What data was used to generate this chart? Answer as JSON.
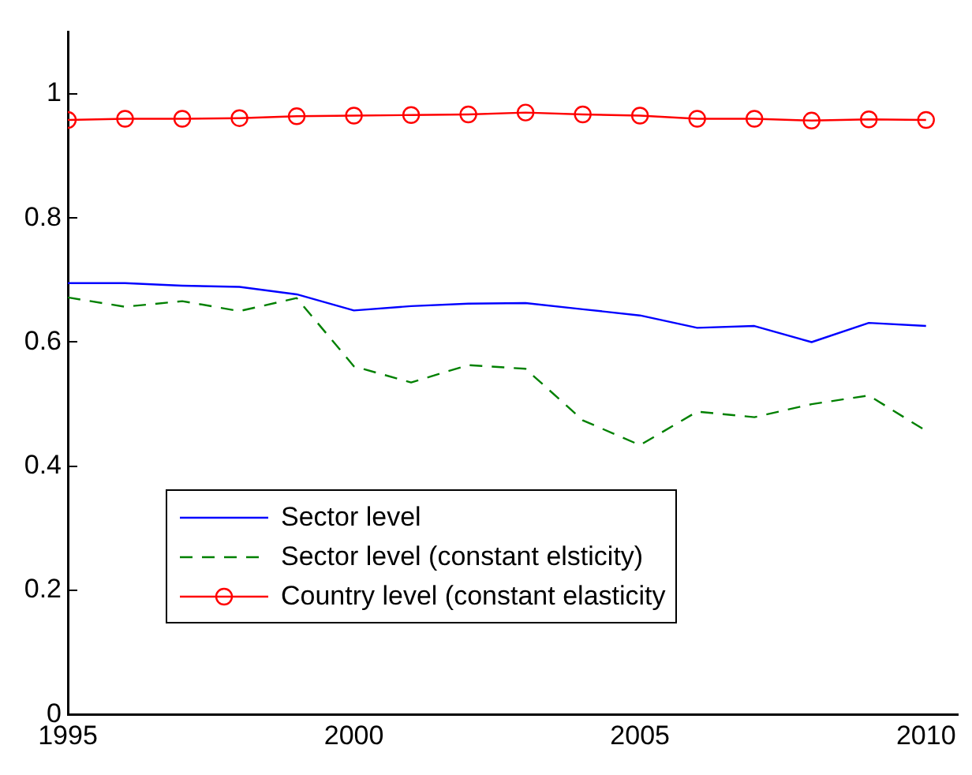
{
  "chart_data": {
    "type": "line",
    "x": [
      1995,
      1996,
      1997,
      1998,
      1999,
      2000,
      2001,
      2002,
      2003,
      2004,
      2005,
      2006,
      2007,
      2008,
      2009,
      2010
    ],
    "series": [
      {
        "name": "Sector level",
        "color": "#0000ff",
        "line_style": "solid",
        "marker": "none",
        "values": [
          0.695,
          0.695,
          0.691,
          0.689,
          0.677,
          0.651,
          0.658,
          0.662,
          0.663,
          0.653,
          0.643,
          0.623,
          0.626,
          0.6,
          0.631,
          0.626
        ]
      },
      {
        "name": "Sector level (constant elsticity)",
        "color": "#008000",
        "line_style": "dashed",
        "marker": "none",
        "values": [
          0.672,
          0.657,
          0.666,
          0.65,
          0.671,
          0.561,
          0.535,
          0.563,
          0.557,
          0.474,
          0.434,
          0.488,
          0.479,
          0.5,
          0.514,
          0.457
        ]
      },
      {
        "name": "Country level (constant elasticity",
        "color": "#ff0000",
        "line_style": "solid",
        "marker": "circle",
        "values": [
          0.958,
          0.96,
          0.96,
          0.961,
          0.964,
          0.965,
          0.966,
          0.967,
          0.97,
          0.967,
          0.965,
          0.96,
          0.96,
          0.957,
          0.959,
          0.958
        ]
      }
    ],
    "xlim": [
      1995,
      2010.55
    ],
    "xticks": [
      1995,
      2000,
      2005,
      2010
    ],
    "ylim": [
      0,
      1.1
    ],
    "yticks": [
      0,
      0.2,
      0.4,
      0.6,
      0.8,
      1
    ],
    "grid": false,
    "legend": "bottom left"
  }
}
